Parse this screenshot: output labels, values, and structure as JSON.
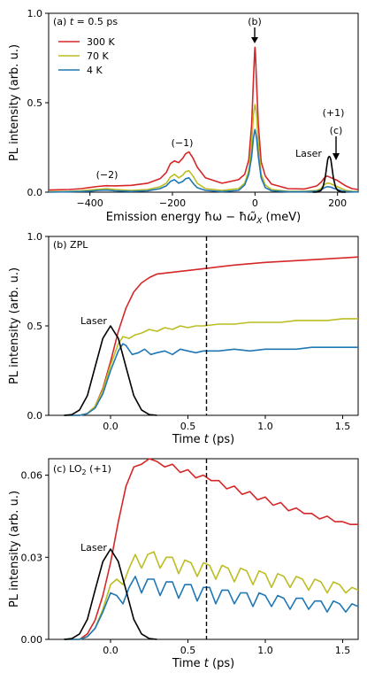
{
  "colors": {
    "T300": "#d62728",
    "T70": "#bcbd22",
    "T4": "#1f77b4",
    "laser": "#000000",
    "dashed": "#000000"
  },
  "chart_data": [
    {
      "type": "line",
      "panel_label": "(a) t = 0.5 ps",
      "xlabel": "Emission energy ħω − ħω̃X (meV)",
      "ylabel": "PL intensity (arb. u.)",
      "xlim": [
        -500,
        250
      ],
      "ylim": [
        0,
        1.0
      ],
      "x_ticks": [
        -400,
        -200,
        0,
        200
      ],
      "x_tick_labels": [
        "−400",
        "−200",
        "0",
        "200"
      ],
      "y_ticks": [
        0,
        0.5,
        1.0
      ],
      "y_tick_labels": [
        "0.0",
        "0.5",
        "1.0"
      ],
      "legend": {
        "position": "top-left",
        "entries": [
          "300 K",
          "70 K",
          "4 K"
        ]
      },
      "series": [
        {
          "name": "300 K",
          "color_key": "T300",
          "x": [
            -500,
            -450,
            -420,
            -400,
            -380,
            -360,
            -340,
            -300,
            -260,
            -230,
            -215,
            -205,
            -195,
            -190,
            -185,
            -175,
            -168,
            -160,
            -150,
            -140,
            -120,
            -80,
            -40,
            -25,
            -15,
            -8,
            -4,
            -1,
            0,
            1,
            4,
            8,
            15,
            25,
            40,
            80,
            120,
            150,
            160,
            165,
            170,
            175,
            180,
            185,
            190,
            200,
            210,
            220,
            235,
            250
          ],
          "y": [
            0.012,
            0.015,
            0.02,
            0.026,
            0.032,
            0.036,
            0.035,
            0.038,
            0.05,
            0.075,
            0.11,
            0.16,
            0.175,
            0.17,
            0.165,
            0.19,
            0.215,
            0.225,
            0.19,
            0.14,
            0.08,
            0.05,
            0.07,
            0.1,
            0.18,
            0.38,
            0.62,
            0.78,
            0.81,
            0.78,
            0.6,
            0.38,
            0.17,
            0.09,
            0.045,
            0.02,
            0.018,
            0.035,
            0.055,
            0.07,
            0.085,
            0.09,
            0.085,
            0.08,
            0.075,
            0.065,
            0.05,
            0.035,
            0.02,
            0.015
          ]
        },
        {
          "name": "70 K",
          "color_key": "T70",
          "x": [
            -500,
            -450,
            -420,
            -400,
            -380,
            -360,
            -340,
            -300,
            -260,
            -230,
            -215,
            -205,
            -195,
            -190,
            -185,
            -175,
            -168,
            -160,
            -150,
            -140,
            -120,
            -80,
            -40,
            -25,
            -15,
            -8,
            -4,
            -1,
            0,
            1,
            4,
            8,
            15,
            25,
            40,
            80,
            120,
            150,
            160,
            165,
            170,
            175,
            180,
            185,
            190,
            200,
            210,
            220,
            235,
            250
          ],
          "y": [
            0.003,
            0.004,
            0.008,
            0.012,
            0.016,
            0.02,
            0.015,
            0.01,
            0.015,
            0.03,
            0.05,
            0.085,
            0.1,
            0.09,
            0.08,
            0.095,
            0.115,
            0.12,
            0.09,
            0.05,
            0.02,
            0.01,
            0.02,
            0.05,
            0.12,
            0.27,
            0.43,
            0.48,
            0.49,
            0.48,
            0.43,
            0.27,
            0.1,
            0.04,
            0.015,
            0.005,
            0.005,
            0.01,
            0.02,
            0.035,
            0.045,
            0.05,
            0.05,
            0.045,
            0.04,
            0.03,
            0.02,
            0.01,
            0.005,
            0.003
          ]
        },
        {
          "name": "4 K",
          "color_key": "T4",
          "x": [
            -500,
            -450,
            -420,
            -400,
            -380,
            -360,
            -340,
            -300,
            -260,
            -230,
            -215,
            -205,
            -195,
            -190,
            -185,
            -175,
            -168,
            -160,
            -150,
            -140,
            -120,
            -80,
            -40,
            -25,
            -15,
            -8,
            -4,
            -1,
            0,
            1,
            4,
            8,
            15,
            25,
            40,
            80,
            120,
            150,
            160,
            165,
            170,
            175,
            180,
            185,
            190,
            200,
            210,
            220,
            235,
            250
          ],
          "y": [
            0.0,
            0.002,
            0.004,
            0.006,
            0.01,
            0.012,
            0.008,
            0.004,
            0.008,
            0.02,
            0.035,
            0.06,
            0.07,
            0.06,
            0.05,
            0.06,
            0.075,
            0.08,
            0.05,
            0.025,
            0.01,
            0.003,
            0.01,
            0.04,
            0.1,
            0.2,
            0.3,
            0.34,
            0.35,
            0.34,
            0.3,
            0.2,
            0.08,
            0.025,
            0.008,
            0.002,
            0.002,
            0.006,
            0.012,
            0.02,
            0.027,
            0.03,
            0.03,
            0.027,
            0.022,
            0.015,
            0.008,
            0.004,
            0.002,
            0.001
          ]
        },
        {
          "name": "Laser",
          "color_key": "laser",
          "x": [
            140,
            150,
            160,
            165,
            170,
            173,
            176,
            178,
            180,
            182,
            184,
            187,
            190,
            195,
            200,
            210,
            220
          ],
          "y": [
            0.0,
            0.0,
            0.01,
            0.03,
            0.08,
            0.13,
            0.18,
            0.195,
            0.2,
            0.195,
            0.18,
            0.13,
            0.08,
            0.03,
            0.01,
            0.0,
            0.0
          ]
        }
      ],
      "annotations": [
        {
          "text": "(−2)",
          "x": -380,
          "y": 0.085
        },
        {
          "text": "(−1)",
          "x": -185,
          "y": 0.26
        },
        {
          "text": "(b)",
          "x": 0,
          "y": 0.96
        },
        {
          "text": "(+1)",
          "x": 180,
          "y": 0.44
        },
        {
          "text": "(c)",
          "x": 188,
          "y": 0.34
        },
        {
          "text": "Laser",
          "x": 120,
          "y": 0.205
        }
      ]
    },
    {
      "type": "line",
      "panel_label": "(b) ZPL",
      "xlabel": "Time t (ps)",
      "ylabel": "PL intensity (arb. u.)",
      "xlim": [
        -0.4,
        1.6
      ],
      "ylim": [
        0,
        1.0
      ],
      "x_ticks": [
        0.0,
        0.5,
        1.0,
        1.5
      ],
      "x_tick_labels": [
        "0.0",
        "0.5",
        "1.0",
        "1.5"
      ],
      "y_ticks": [
        0,
        0.5,
        1.0
      ],
      "y_tick_labels": [
        "0.0",
        "0.5",
        "1.0"
      ],
      "vline": 0.62,
      "series": [
        {
          "name": "300 K",
          "color_key": "T300",
          "x": [
            -0.3,
            -0.2,
            -0.15,
            -0.1,
            -0.05,
            0.0,
            0.05,
            0.1,
            0.15,
            0.2,
            0.25,
            0.3,
            0.4,
            0.5,
            0.6,
            0.8,
            1.0,
            1.2,
            1.4,
            1.6
          ],
          "y": [
            0.0,
            0.0,
            0.01,
            0.05,
            0.15,
            0.3,
            0.47,
            0.6,
            0.69,
            0.74,
            0.77,
            0.79,
            0.8,
            0.81,
            0.82,
            0.84,
            0.855,
            0.865,
            0.875,
            0.885
          ]
        },
        {
          "name": "70 K",
          "color_key": "T70",
          "x": [
            -0.3,
            -0.2,
            -0.15,
            -0.1,
            -0.05,
            0.0,
            0.05,
            0.08,
            0.12,
            0.16,
            0.2,
            0.25,
            0.3,
            0.35,
            0.4,
            0.45,
            0.5,
            0.55,
            0.6,
            0.7,
            0.8,
            0.9,
            1.0,
            1.1,
            1.2,
            1.3,
            1.4,
            1.5,
            1.6
          ],
          "y": [
            0.0,
            0.0,
            0.01,
            0.05,
            0.14,
            0.28,
            0.4,
            0.44,
            0.43,
            0.45,
            0.46,
            0.48,
            0.47,
            0.49,
            0.48,
            0.5,
            0.49,
            0.5,
            0.5,
            0.51,
            0.51,
            0.52,
            0.52,
            0.52,
            0.53,
            0.53,
            0.53,
            0.54,
            0.54
          ]
        },
        {
          "name": "4 K",
          "color_key": "T4",
          "x": [
            -0.3,
            -0.2,
            -0.15,
            -0.1,
            -0.05,
            0.0,
            0.05,
            0.08,
            0.1,
            0.14,
            0.18,
            0.22,
            0.26,
            0.3,
            0.35,
            0.4,
            0.45,
            0.5,
            0.55,
            0.6,
            0.7,
            0.8,
            0.9,
            1.0,
            1.1,
            1.2,
            1.3,
            1.4,
            1.5,
            1.6
          ],
          "y": [
            0.0,
            0.0,
            0.01,
            0.04,
            0.12,
            0.25,
            0.36,
            0.4,
            0.39,
            0.34,
            0.35,
            0.37,
            0.34,
            0.35,
            0.36,
            0.34,
            0.37,
            0.36,
            0.35,
            0.36,
            0.36,
            0.37,
            0.36,
            0.37,
            0.37,
            0.37,
            0.38,
            0.38,
            0.38,
            0.38
          ]
        },
        {
          "name": "Laser",
          "color_key": "laser",
          "x": [
            -0.3,
            -0.25,
            -0.2,
            -0.15,
            -0.1,
            -0.05,
            0.0,
            0.05,
            0.1,
            0.15,
            0.2,
            0.25,
            0.3
          ],
          "y": [
            0.0,
            0.004,
            0.03,
            0.11,
            0.27,
            0.43,
            0.5,
            0.43,
            0.27,
            0.11,
            0.03,
            0.004,
            0.0
          ]
        }
      ],
      "annotations": [
        {
          "text": "Laser",
          "x": -0.2,
          "y": 0.52
        }
      ]
    },
    {
      "type": "line",
      "panel_label": "(c) LO2 (+1)",
      "xlabel": "Time t (ps)",
      "ylabel": "PL intensity (arb. u.)",
      "xlim": [
        -0.4,
        1.6
      ],
      "ylim": [
        0,
        0.066
      ],
      "x_ticks": [
        0.0,
        0.5,
        1.0,
        1.5
      ],
      "x_tick_labels": [
        "0.0",
        "0.5",
        "1.0",
        "1.5"
      ],
      "y_ticks": [
        0,
        0.03,
        0.06
      ],
      "y_tick_labels": [
        "0.00",
        "0.03",
        "0.06"
      ],
      "vline": 0.62,
      "series": [
        {
          "name": "300 K",
          "color_key": "T300",
          "x": [
            -0.3,
            -0.2,
            -0.15,
            -0.1,
            -0.05,
            0.0,
            0.05,
            0.1,
            0.15,
            0.2,
            0.25,
            0.3,
            0.35,
            0.4,
            0.45,
            0.5,
            0.55,
            0.6,
            0.65,
            0.7,
            0.75,
            0.8,
            0.85,
            0.9,
            0.95,
            1.0,
            1.05,
            1.1,
            1.15,
            1.2,
            1.25,
            1.3,
            1.35,
            1.4,
            1.45,
            1.5,
            1.55,
            1.6
          ],
          "y": [
            0.0,
            0.0,
            0.002,
            0.007,
            0.016,
            0.028,
            0.043,
            0.056,
            0.063,
            0.064,
            0.066,
            0.065,
            0.063,
            0.064,
            0.061,
            0.062,
            0.059,
            0.06,
            0.058,
            0.058,
            0.055,
            0.056,
            0.053,
            0.054,
            0.051,
            0.052,
            0.049,
            0.05,
            0.047,
            0.048,
            0.046,
            0.046,
            0.044,
            0.045,
            0.043,
            0.043,
            0.042,
            0.042
          ]
        },
        {
          "name": "70 K",
          "color_key": "T70",
          "x": [
            -0.3,
            -0.2,
            -0.15,
            -0.1,
            -0.05,
            0.0,
            0.04,
            0.08,
            0.12,
            0.16,
            0.2,
            0.24,
            0.28,
            0.32,
            0.36,
            0.4,
            0.44,
            0.48,
            0.52,
            0.56,
            0.6,
            0.64,
            0.68,
            0.72,
            0.76,
            0.8,
            0.84,
            0.88,
            0.92,
            0.96,
            1.0,
            1.04,
            1.08,
            1.12,
            1.16,
            1.2,
            1.24,
            1.28,
            1.32,
            1.36,
            1.4,
            1.44,
            1.48,
            1.52,
            1.56,
            1.6
          ],
          "y": [
            0.0,
            0.0,
            0.001,
            0.004,
            0.011,
            0.02,
            0.022,
            0.02,
            0.026,
            0.031,
            0.026,
            0.031,
            0.032,
            0.026,
            0.03,
            0.03,
            0.024,
            0.029,
            0.028,
            0.023,
            0.028,
            0.027,
            0.022,
            0.027,
            0.026,
            0.021,
            0.026,
            0.025,
            0.02,
            0.025,
            0.024,
            0.019,
            0.024,
            0.023,
            0.019,
            0.023,
            0.022,
            0.018,
            0.022,
            0.021,
            0.017,
            0.021,
            0.02,
            0.017,
            0.019,
            0.018
          ]
        },
        {
          "name": "4 K",
          "color_key": "T4",
          "x": [
            -0.3,
            -0.2,
            -0.15,
            -0.1,
            -0.05,
            0.0,
            0.04,
            0.08,
            0.12,
            0.16,
            0.2,
            0.24,
            0.28,
            0.32,
            0.36,
            0.4,
            0.44,
            0.48,
            0.52,
            0.56,
            0.6,
            0.64,
            0.68,
            0.72,
            0.76,
            0.8,
            0.84,
            0.88,
            0.92,
            0.96,
            1.0,
            1.04,
            1.08,
            1.12,
            1.16,
            1.2,
            1.24,
            1.28,
            1.32,
            1.36,
            1.4,
            1.44,
            1.48,
            1.52,
            1.56,
            1.6
          ],
          "y": [
            0.0,
            0.0,
            0.001,
            0.004,
            0.01,
            0.017,
            0.016,
            0.013,
            0.019,
            0.023,
            0.017,
            0.022,
            0.022,
            0.016,
            0.021,
            0.021,
            0.015,
            0.02,
            0.02,
            0.014,
            0.019,
            0.019,
            0.013,
            0.018,
            0.018,
            0.013,
            0.017,
            0.017,
            0.012,
            0.017,
            0.016,
            0.012,
            0.016,
            0.015,
            0.011,
            0.015,
            0.015,
            0.011,
            0.014,
            0.014,
            0.01,
            0.014,
            0.013,
            0.01,
            0.013,
            0.012
          ]
        },
        {
          "name": "Laser",
          "color_key": "laser",
          "x": [
            -0.3,
            -0.25,
            -0.2,
            -0.15,
            -0.1,
            -0.05,
            0.0,
            0.05,
            0.1,
            0.15,
            0.2,
            0.25,
            0.3
          ],
          "y": [
            0.0,
            0.0003,
            0.002,
            0.0073,
            0.018,
            0.0284,
            0.033,
            0.0284,
            0.018,
            0.0073,
            0.002,
            0.0003,
            0.0
          ]
        }
      ],
      "annotations": [
        {
          "text": "Laser",
          "x": -0.2,
          "y": 0.034
        }
      ]
    }
  ]
}
